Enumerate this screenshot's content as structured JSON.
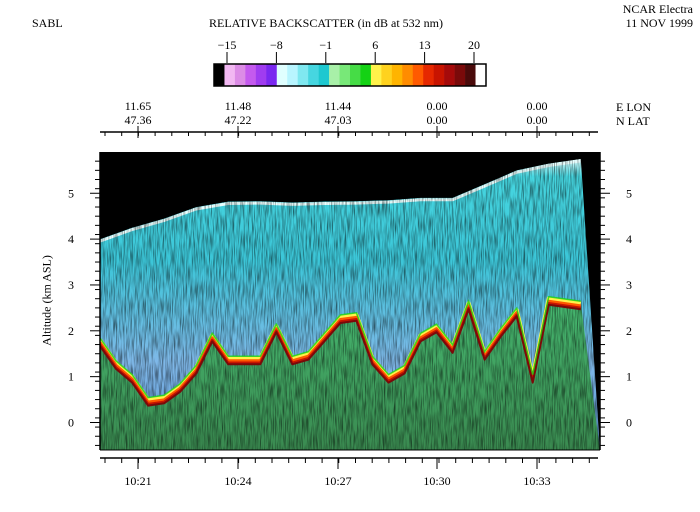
{
  "header": {
    "instrument": "SABL",
    "title": "RELATIVE BACKSCATTER (in dB at 532 nm)",
    "platform": "NCAR Electra",
    "date": "11 NOV 1999"
  },
  "colorbar": {
    "tick_labels": [
      "−15",
      "−8",
      "−1",
      "6",
      "13",
      "20"
    ],
    "colors": [
      "#000000",
      "#f2b8f2",
      "#dc8ce6",
      "#c45aee",
      "#a03cf0",
      "#7a28f0",
      "#e0ffff",
      "#b8f5ff",
      "#7fe8f0",
      "#46d6e0",
      "#1ec8d0",
      "#a8f0a8",
      "#78e878",
      "#46dc46",
      "#14d214",
      "#fff24a",
      "#ffd21e",
      "#ffb400",
      "#ff8c00",
      "#ff5a00",
      "#e62800",
      "#c81400",
      "#a50a0a",
      "#7a0a0a",
      "#4a0a0a",
      "#ffffff"
    ]
  },
  "nav": {
    "lon_values": [
      "11.65",
      "11.48",
      "11.44",
      "0.00",
      "0.00"
    ],
    "lat_values": [
      "47.36",
      "47.22",
      "47.03",
      "0.00",
      "0.00"
    ],
    "lon_label": "E  LON",
    "lat_label": "N  LAT"
  },
  "chart_data": {
    "type": "heatmap",
    "title": "RELATIVE BACKSCATTER (in dB at 532 nm)",
    "xlabel": "",
    "ylabel": "Altitude (km ASL)",
    "x_tick_labels": [
      "10:21",
      "10:24",
      "10:27",
      "10:30",
      "10:33"
    ],
    "y_ticks": [
      0,
      1,
      2,
      3,
      4,
      5
    ],
    "ylim": [
      -0.6,
      5.9
    ],
    "color_scale": {
      "min": -15,
      "max": 20,
      "unit": "dB"
    },
    "aircraft_altitude_km": [
      {
        "time": "10:20",
        "alt": 4.0
      },
      {
        "time": "10:21",
        "alt": 4.25
      },
      {
        "time": "10:22",
        "alt": 4.45
      },
      {
        "time": "10:23",
        "alt": 4.7
      },
      {
        "time": "10:24",
        "alt": 4.82
      },
      {
        "time": "10:25",
        "alt": 4.83
      },
      {
        "time": "10:26",
        "alt": 4.8
      },
      {
        "time": "10:27",
        "alt": 4.82
      },
      {
        "time": "10:28",
        "alt": 4.83
      },
      {
        "time": "10:29",
        "alt": 4.85
      },
      {
        "time": "10:30",
        "alt": 4.9
      },
      {
        "time": "10:31",
        "alt": 4.9
      },
      {
        "time": "10:32",
        "alt": 5.2
      },
      {
        "time": "10:33",
        "alt": 5.5
      },
      {
        "time": "10:34",
        "alt": 5.65
      },
      {
        "time": "10:35",
        "alt": 5.75
      }
    ],
    "aerosol_layer_top_km": [
      {
        "time": "10:20",
        "alt": 1.8
      },
      {
        "time": "10:20.5",
        "alt": 1.3
      },
      {
        "time": "10:21",
        "alt": 1.0
      },
      {
        "time": "10:21.5",
        "alt": 0.5
      },
      {
        "time": "10:22",
        "alt": 0.55
      },
      {
        "time": "10:22.5",
        "alt": 0.8
      },
      {
        "time": "10:23",
        "alt": 1.2
      },
      {
        "time": "10:23.5",
        "alt": 1.9
      },
      {
        "time": "10:24",
        "alt": 1.4
      },
      {
        "time": "10:25",
        "alt": 1.4
      },
      {
        "time": "10:25.5",
        "alt": 2.1
      },
      {
        "time": "10:26",
        "alt": 1.4
      },
      {
        "time": "10:26.5",
        "alt": 1.5
      },
      {
        "time": "10:27",
        "alt": 1.9
      },
      {
        "time": "10:27.5",
        "alt": 2.3
      },
      {
        "time": "10:28",
        "alt": 2.35
      },
      {
        "time": "10:28.5",
        "alt": 1.4
      },
      {
        "time": "10:29",
        "alt": 1.0
      },
      {
        "time": "10:29.5",
        "alt": 1.2
      },
      {
        "time": "10:30",
        "alt": 1.9
      },
      {
        "time": "10:30.5",
        "alt": 2.1
      },
      {
        "time": "10:31",
        "alt": 1.65
      },
      {
        "time": "10:31.5",
        "alt": 2.6
      },
      {
        "time": "10:32",
        "alt": 1.5
      },
      {
        "time": "10:32.5",
        "alt": 2.0
      },
      {
        "time": "10:33",
        "alt": 2.45
      },
      {
        "time": "10:33.5",
        "alt": 1.0
      },
      {
        "time": "10:34",
        "alt": 2.7
      },
      {
        "time": "10:35",
        "alt": 2.6
      }
    ]
  }
}
